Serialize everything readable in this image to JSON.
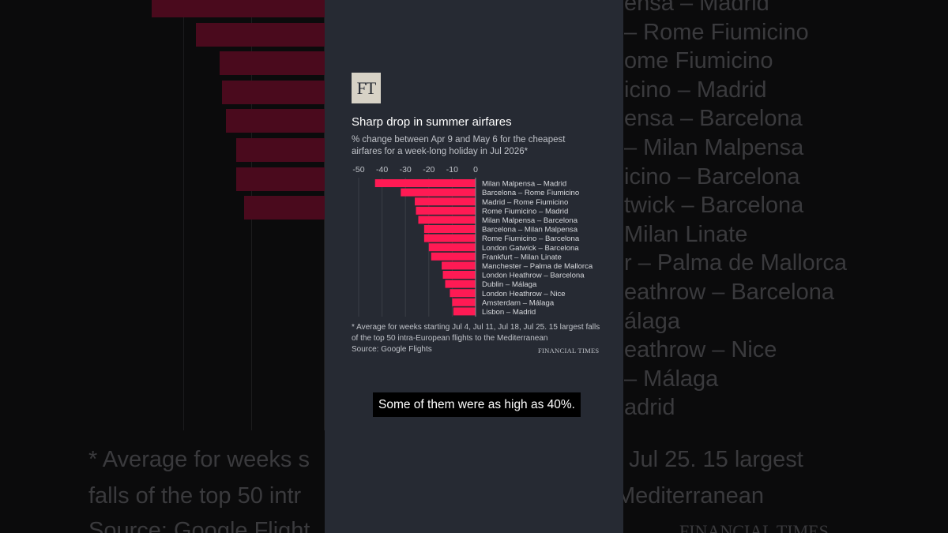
{
  "panel": {
    "logo": "FT",
    "footnote": "* Average for weeks starting Jul 4, Jul 11, Jul 18, Jul 25. 15 largest falls of the top 50 intra-European flights to the Mediterranean",
    "source": "Source: Google Flights",
    "wordmark": "FINANCIAL TIMES"
  },
  "caption": "Some of them were as high as 40%.",
  "colors": {
    "bar": "#ff1a54",
    "panel": "#262a33",
    "text": "#bfc2c8"
  },
  "background": {
    "routes": [
      "ensa – Madrid",
      "– Rome Fiumicino",
      "ome Fiumicino",
      "icino – Madrid",
      "ensa – Barcelona",
      "– Milan Malpensa",
      "icino – Barcelona",
      "twick – Barcelona",
      "Milan Linate",
      "r – Palma de Mallorca",
      "eathrow – Barcelona",
      "álaga",
      "eathrow – Nice",
      "– Málaga",
      "adrid"
    ],
    "footnote_line1_left": "* Average for weeks s",
    "footnote_line1_right": "Jul 25. 15 largest",
    "footnote_line2_left": "falls of the top 50 intr",
    "footnote_line2_right": "Mediterranean",
    "source_left": "Source: Google Flight",
    "wordmark_right": "FINANCIAL TIMES"
  },
  "chart_data": {
    "type": "bar",
    "orientation": "horizontal",
    "title": "Sharp drop in summer airfares",
    "subtitle": "% change between Apr 9 and May 6 for the cheapest airfares for a week-long holiday in Jul 2026*",
    "xlim": [
      -50,
      0
    ],
    "xticks": [
      "-50",
      "-40",
      "-30",
      "-20",
      "-10",
      "0"
    ],
    "xtick_values": [
      -50,
      -40,
      -30,
      -20,
      -10,
      0
    ],
    "grid": true,
    "categories": [
      "Milan Malpensa – Madrid",
      "Barcelona – Rome Fiumicino",
      "Madrid – Rome Fiumicino",
      "Rome Fiumicino – Madrid",
      "Milan Malpensa – Barcelona",
      "Barcelona – Milan Malpensa",
      "Rome Fiumicino – Barcelona",
      "London Gatwick – Barcelona",
      "Frankfurt – Milan Linate",
      "Manchester – Palma de Mallorca",
      "London Heathrow – Barcelona",
      "Dublin – Málaga",
      "London Heathrow – Nice",
      "Amsterdam – Málaga",
      "Lisbon – Madrid"
    ],
    "values": [
      -43,
      -32,
      -26,
      -25.5,
      -24.5,
      -22,
      -22,
      -20,
      -19,
      -14.5,
      -14,
      -13,
      -11,
      -10,
      -9.5
    ]
  }
}
